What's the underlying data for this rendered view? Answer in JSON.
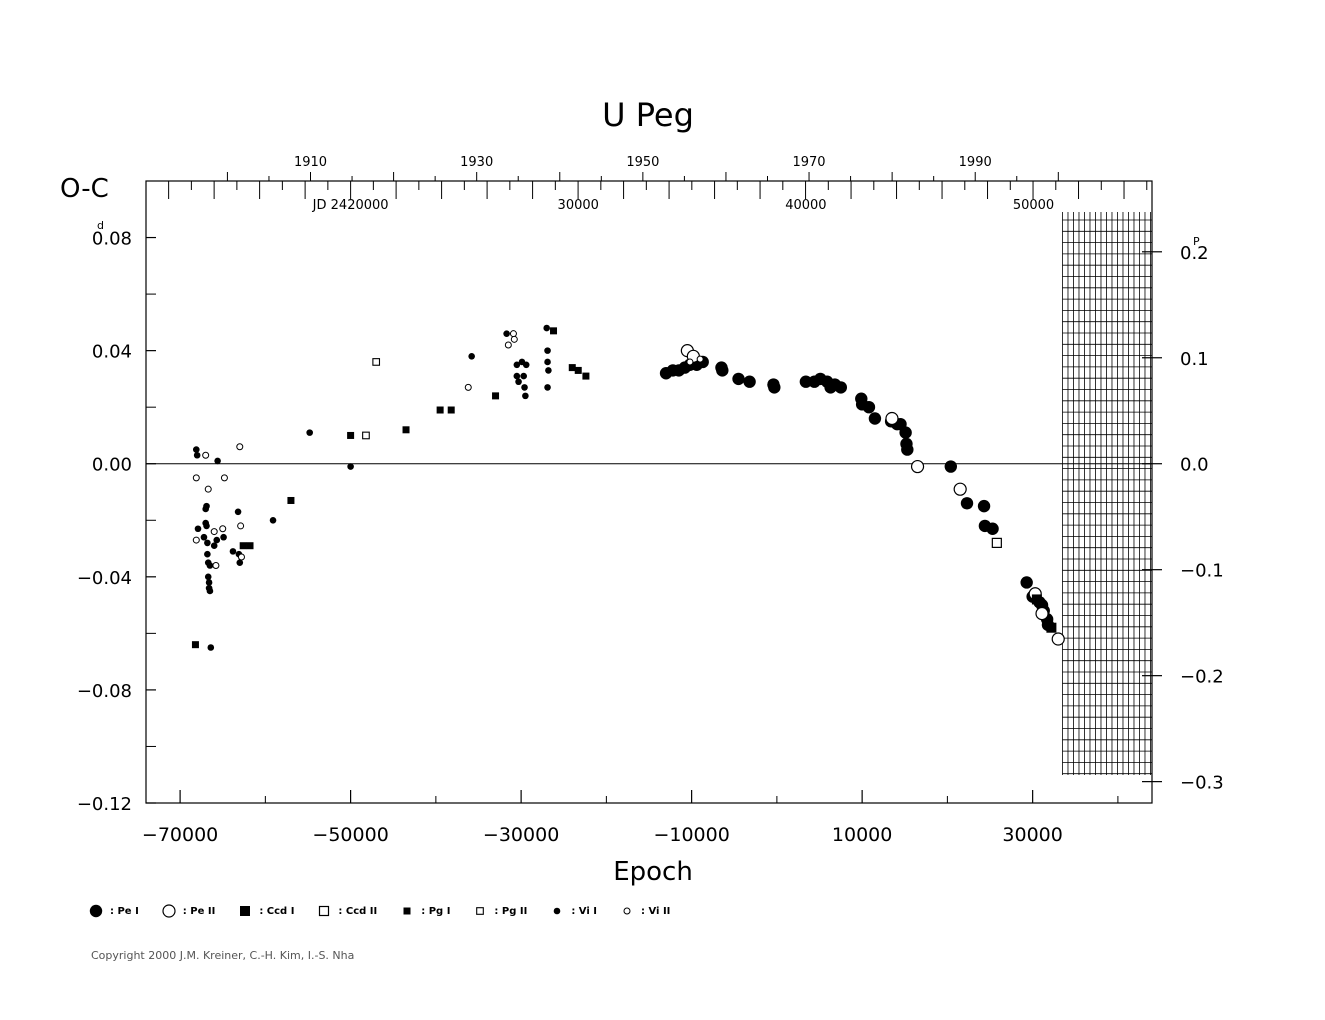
{
  "chart_data": {
    "type": "scatter",
    "title": "U Peg",
    "xlabel": "Epoch",
    "ylabel": "O-C",
    "ylabel_unit_mark": "d",
    "right_axis_unit_mark": "P",
    "xlim": [
      -74000,
      44000
    ],
    "ylim": [
      -0.12,
      0.1
    ],
    "x_ticks": [
      -70000,
      -50000,
      -30000,
      -10000,
      10000,
      30000
    ],
    "x_tick_labels": [
      "−70000",
      "−50000",
      "−30000",
      "−10000",
      "10000",
      "30000"
    ],
    "y_ticks": [
      0.08,
      0.04,
      0.0,
      -0.04,
      -0.08,
      -0.12
    ],
    "y_tick_labels": [
      "0.08",
      "0.04",
      "0.00",
      "−0.04",
      "−0.08",
      "−0.12"
    ],
    "right_ticks": [
      0.2,
      0.1,
      0.0,
      -0.1,
      -0.2,
      -0.3
    ],
    "right_tick_labels": [
      "0.2",
      "0.1",
      "0.0",
      "−0.1",
      "−0.2",
      "−0.3"
    ],
    "period_days": 0.3748,
    "top_year_ticks": [
      1910,
      1930,
      1950,
      1970,
      1990
    ],
    "top_jd_labels": [
      {
        "label": "JD 2420000",
        "epoch": -50000
      },
      {
        "label": "30000",
        "epoch": -23300
      },
      {
        "label": "40000",
        "epoch": 3400
      },
      {
        "label": "50000",
        "epoch": 30100
      }
    ],
    "hatched_region": [
      33500,
      44000
    ],
    "zero_line": true,
    "series": [
      {
        "name": "Pe I",
        "marker": "large-filled-circle",
        "points": [
          [
            -13000,
            0.032
          ],
          [
            -12200,
            0.033
          ],
          [
            -11500,
            0.033
          ],
          [
            -10800,
            0.034
          ],
          [
            -10200,
            0.035
          ],
          [
            -9400,
            0.035
          ],
          [
            -8700,
            0.036
          ],
          [
            -6500,
            0.034
          ],
          [
            -6400,
            0.033
          ],
          [
            -4500,
            0.03
          ],
          [
            -3200,
            0.029
          ],
          [
            -400,
            0.028
          ],
          [
            -300,
            0.027
          ],
          [
            3400,
            0.029
          ],
          [
            4400,
            0.029
          ],
          [
            5100,
            0.03
          ],
          [
            5900,
            0.029
          ],
          [
            6300,
            0.027
          ],
          [
            6800,
            0.028
          ],
          [
            7500,
            0.027
          ],
          [
            9900,
            0.023
          ],
          [
            10000,
            0.021
          ],
          [
            10800,
            0.02
          ],
          [
            11500,
            0.016
          ],
          [
            13400,
            0.015
          ],
          [
            14100,
            0.014
          ],
          [
            14500,
            0.014
          ],
          [
            15100,
            0.011
          ],
          [
            15200,
            0.007
          ],
          [
            15300,
            0.005
          ],
          [
            20400,
            -0.001
          ],
          [
            22300,
            -0.014
          ],
          [
            24300,
            -0.015
          ],
          [
            24400,
            -0.022
          ],
          [
            25300,
            -0.023
          ],
          [
            29300,
            -0.042
          ],
          [
            30000,
            -0.047
          ],
          [
            30300,
            -0.046
          ],
          [
            30800,
            -0.049
          ],
          [
            31100,
            -0.05
          ],
          [
            31300,
            -0.052
          ],
          [
            31700,
            -0.055
          ],
          [
            31800,
            -0.057
          ]
        ]
      },
      {
        "name": "Pe II",
        "marker": "large-open-circle",
        "points": [
          [
            -10500,
            0.04
          ],
          [
            -9800,
            0.038
          ],
          [
            13500,
            0.016
          ],
          [
            16500,
            -0.001
          ],
          [
            21500,
            -0.009
          ],
          [
            30300,
            -0.046
          ],
          [
            31100,
            -0.053
          ],
          [
            33000,
            -0.062
          ]
        ]
      },
      {
        "name": "Ccd I",
        "marker": "filled-square",
        "points": [
          [
            30500,
            -0.048
          ],
          [
            32200,
            -0.058
          ]
        ]
      },
      {
        "name": "Ccd II",
        "marker": "open-square",
        "points": [
          [
            25800,
            -0.028
          ]
        ]
      },
      {
        "name": "Pg I",
        "marker": "small-filled-square",
        "points": [
          [
            -68200,
            -0.064
          ],
          [
            -62600,
            -0.029
          ],
          [
            -61800,
            -0.029
          ],
          [
            -57000,
            -0.013
          ],
          [
            -50000,
            0.01
          ],
          [
            -43500,
            0.012
          ],
          [
            -39500,
            0.019
          ],
          [
            -38200,
            0.019
          ],
          [
            -33000,
            0.024
          ],
          [
            -26200,
            0.047
          ],
          [
            -24000,
            0.034
          ],
          [
            -23300,
            0.033
          ],
          [
            -22400,
            0.031
          ]
        ]
      },
      {
        "name": "Pg II",
        "marker": "small-open-square",
        "points": [
          [
            -48200,
            0.01
          ],
          [
            -47000,
            0.036
          ]
        ]
      },
      {
        "name": "Vi I",
        "marker": "small-filled-circle",
        "points": [
          [
            -68100,
            0.005
          ],
          [
            -68000,
            0.003
          ],
          [
            -67900,
            -0.023
          ],
          [
            -67200,
            -0.026
          ],
          [
            -67000,
            -0.021
          ],
          [
            -67000,
            -0.016
          ],
          [
            -66900,
            -0.015
          ],
          [
            -66900,
            -0.022
          ],
          [
            -66800,
            -0.028
          ],
          [
            -66800,
            -0.032
          ],
          [
            -66700,
            -0.035
          ],
          [
            -66700,
            -0.04
          ],
          [
            -66600,
            -0.042
          ],
          [
            -66600,
            -0.044
          ],
          [
            -66500,
            -0.045
          ],
          [
            -66500,
            -0.036
          ],
          [
            -66400,
            -0.065
          ],
          [
            -66000,
            -0.029
          ],
          [
            -65700,
            -0.027
          ],
          [
            -65600,
            0.001
          ],
          [
            -64900,
            -0.026
          ],
          [
            -63800,
            -0.031
          ],
          [
            -63200,
            -0.017
          ],
          [
            -63100,
            -0.032
          ],
          [
            -63000,
            -0.035
          ],
          [
            -59100,
            -0.02
          ],
          [
            -54800,
            0.011
          ],
          [
            -50000,
            -0.001
          ],
          [
            -35800,
            0.038
          ],
          [
            -31700,
            0.046
          ],
          [
            -30500,
            0.035
          ],
          [
            -30500,
            0.031
          ],
          [
            -30300,
            0.029
          ],
          [
            -29900,
            0.036
          ],
          [
            -29700,
            0.031
          ],
          [
            -29600,
            0.027
          ],
          [
            -29500,
            0.024
          ],
          [
            -29400,
            0.035
          ],
          [
            -27000,
            0.048
          ],
          [
            -26900,
            0.04
          ],
          [
            -26900,
            0.036
          ],
          [
            -26800,
            0.033
          ],
          [
            -26900,
            0.027
          ]
        ]
      },
      {
        "name": "Vi II",
        "marker": "small-open-circle",
        "points": [
          [
            -68100,
            -0.005
          ],
          [
            -68100,
            -0.027
          ],
          [
            -67000,
            0.003
          ],
          [
            -66700,
            -0.009
          ],
          [
            -66000,
            -0.024
          ],
          [
            -65800,
            -0.036
          ],
          [
            -65000,
            -0.023
          ],
          [
            -64800,
            -0.005
          ],
          [
            -63000,
            0.006
          ],
          [
            -62900,
            -0.022
          ],
          [
            -62800,
            -0.033
          ],
          [
            -36200,
            0.027
          ],
          [
            -31500,
            0.042
          ],
          [
            -30900,
            0.046
          ],
          [
            -30800,
            0.044
          ],
          [
            -10200,
            0.036
          ],
          [
            -9000,
            0.037
          ]
        ]
      }
    ]
  },
  "legend": {
    "items": [
      {
        "text": ": Pe I",
        "marker": "large-filled-circle"
      },
      {
        "text": ": Pe II",
        "marker": "large-open-circle"
      },
      {
        "text": ": Ccd I",
        "marker": "filled-square"
      },
      {
        "text": ": Ccd II",
        "marker": "open-square"
      },
      {
        "text": ": Pg I",
        "marker": "small-filled-square"
      },
      {
        "text": ": Pg II",
        "marker": "small-open-square"
      },
      {
        "text": ": Vi I",
        "marker": "small-filled-circle"
      },
      {
        "text": ": Vi II",
        "marker": "small-open-circle"
      }
    ]
  },
  "footer": {
    "copyright": "Copyright 2000 J.M. Kreiner, C.-H. Kim, I.-S. Nha"
  }
}
